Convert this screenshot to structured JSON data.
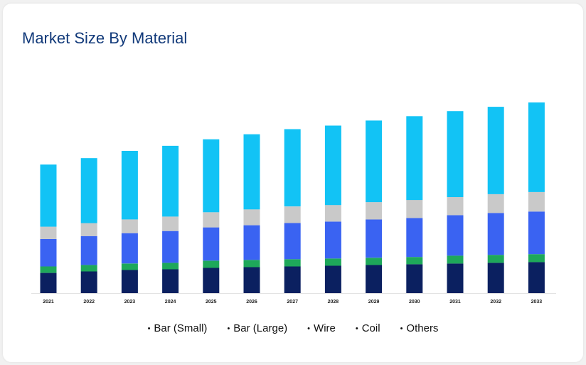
{
  "chart_data": {
    "type": "bar",
    "stacked": true,
    "title": "Market Size By Material",
    "categories": [
      "2021",
      "2022",
      "2023",
      "2024",
      "2025",
      "2026",
      "2027",
      "2028",
      "2029",
      "2030",
      "2031",
      "2032",
      "2033"
    ],
    "series": [
      {
        "name": "Bar (Small)",
        "color": "#0b2060",
        "values": [
          28,
          30,
          32,
          33,
          35,
          36,
          37,
          38,
          39,
          40,
          41,
          42,
          43
        ]
      },
      {
        "name": "Bar (Large)",
        "color": "#1ea85a",
        "values": [
          9,
          9,
          9,
          9,
          10,
          10,
          10,
          10,
          10,
          10,
          11,
          11,
          11
        ]
      },
      {
        "name": "Wire",
        "color": "#3a63f2",
        "values": [
          38,
          40,
          42,
          44,
          46,
          48,
          50,
          51,
          53,
          54,
          56,
          58,
          59
        ]
      },
      {
        "name": "Coil",
        "color": "#c9c9c9",
        "values": [
          17,
          18,
          19,
          20,
          21,
          22,
          23,
          23,
          24,
          25,
          25,
          26,
          27
        ]
      },
      {
        "name": "Others",
        "color": "#12c3f5",
        "values": [
          86,
          90,
          95,
          98,
          101,
          104,
          107,
          110,
          113,
          116,
          119,
          121,
          124
        ]
      }
    ],
    "ylim": [
      0,
      270
    ],
    "xlabel": "",
    "ylabel": "",
    "grid": false,
    "legend_position": "bottom"
  }
}
